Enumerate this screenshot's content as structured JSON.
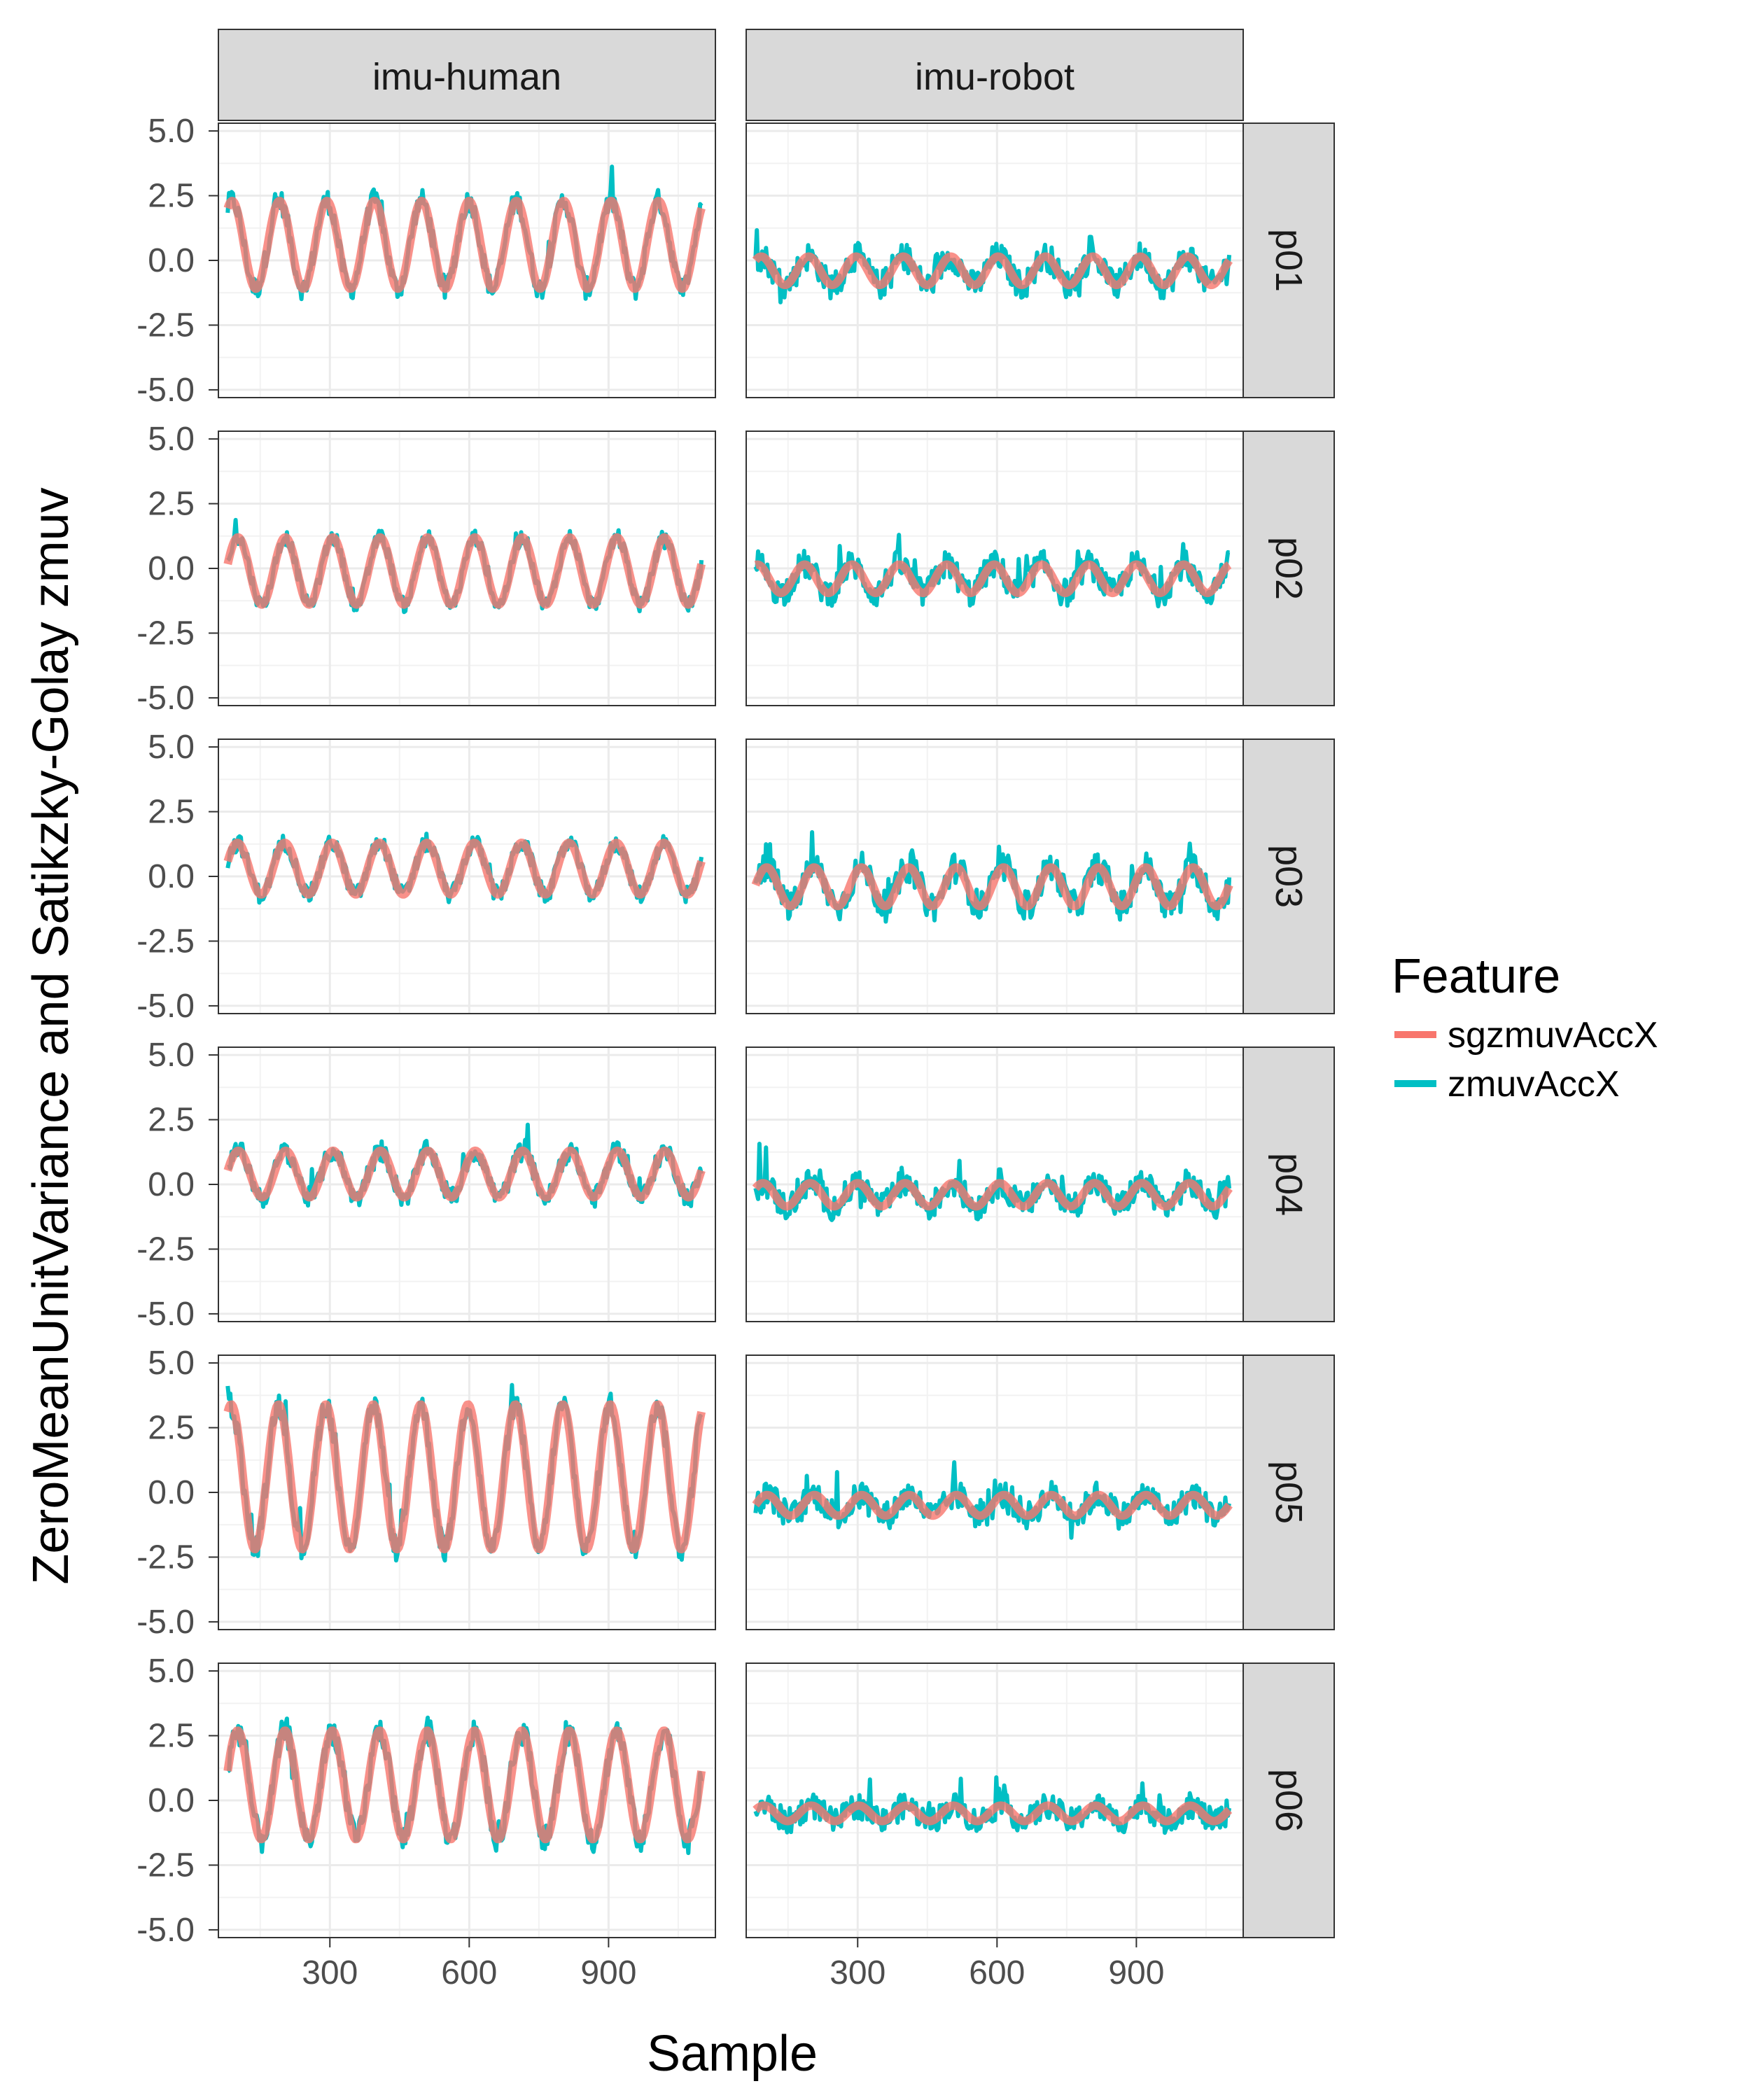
{
  "chart_data": {
    "type": "line",
    "facet_columns": [
      "imu-human",
      "imu-robot"
    ],
    "facet_rows": [
      "p01",
      "p02",
      "p03",
      "p04",
      "p05",
      "p06"
    ],
    "xlabel": "Sample",
    "ylabel": "ZeroMeanUnitVariance and Satikzky-Golay zmuv",
    "x_ticks": [
      "300",
      "600",
      "900"
    ],
    "y_ticks": [
      "5.0",
      "2.5",
      "0.0",
      "-2.5",
      "-5.0"
    ],
    "xlim": [
      60,
      1130
    ],
    "ylim": [
      -5.3,
      5.3
    ],
    "grid": true,
    "legend": {
      "title": "Feature",
      "position": "right",
      "entries": [
        {
          "name": "sgzmuvAccX",
          "color": "#F8766D"
        },
        {
          "name": "zmuvAccX",
          "color": "#00BFC4"
        }
      ]
    },
    "series_shape": {
      "x_start": 80,
      "x_end": 1100,
      "cycles": 10,
      "panels": {
        "imu-human": [
          {
            "row": "p01",
            "offset": 0.6,
            "amplitude": 1.7,
            "noise": 0.45
          },
          {
            "row": "p02",
            "offset": -0.1,
            "amplitude": 1.3,
            "noise": 0.3
          },
          {
            "row": "p03",
            "offset": 0.3,
            "amplitude": 1.0,
            "noise": 0.35
          },
          {
            "row": "p04",
            "offset": 0.4,
            "amplitude": 0.9,
            "noise": 0.4
          },
          {
            "row": "p05",
            "offset": 0.6,
            "amplitude": 2.8,
            "noise": 0.5
          },
          {
            "row": "p06",
            "offset": 0.6,
            "amplitude": 2.1,
            "noise": 0.55
          }
        ],
        "imu-robot": [
          {
            "row": "p01",
            "offset": -0.4,
            "amplitude": 0.55,
            "noise": 0.55
          },
          {
            "row": "p02",
            "offset": -0.4,
            "amplitude": 0.55,
            "noise": 0.55
          },
          {
            "row": "p03",
            "offset": -0.4,
            "amplitude": 0.75,
            "noise": 0.6
          },
          {
            "row": "p04",
            "offset": -0.4,
            "amplitude": 0.45,
            "noise": 0.55
          },
          {
            "row": "p05",
            "offset": -0.5,
            "amplitude": 0.4,
            "noise": 0.55
          },
          {
            "row": "p06",
            "offset": -0.5,
            "amplitude": 0.3,
            "noise": 0.5
          }
        ]
      }
    }
  }
}
